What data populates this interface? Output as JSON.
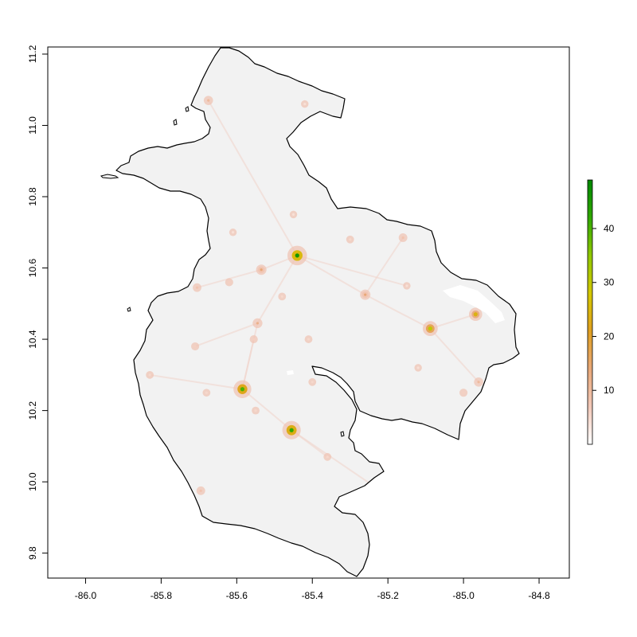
{
  "map": {
    "x_ticks": [
      {
        "value": -86.0,
        "label": "-86.0"
      },
      {
        "value": -85.8,
        "label": "-85.8"
      },
      {
        "value": -85.6,
        "label": "-85.6"
      },
      {
        "value": -85.4,
        "label": "-85.4"
      },
      {
        "value": -85.2,
        "label": "-85.2"
      },
      {
        "value": -85.0,
        "label": "-85.0"
      },
      {
        "value": -84.8,
        "label": "-84.8"
      }
    ],
    "y_ticks": [
      {
        "value": 9.8,
        "label": "9.8"
      },
      {
        "value": 10.0,
        "label": "10.0"
      },
      {
        "value": 10.2,
        "label": "10.2"
      },
      {
        "value": 10.4,
        "label": "10.4"
      },
      {
        "value": 10.6,
        "label": "10.6"
      },
      {
        "value": 10.8,
        "label": "10.8"
      },
      {
        "value": 11.0,
        "label": "11.0"
      },
      {
        "value": 11.2,
        "label": "11.2"
      }
    ],
    "xlim": [
      -86.1,
      -84.72
    ],
    "ylim": [
      9.73,
      11.22
    ],
    "background_fill": "#f2f2f2",
    "boundary_color": "#000000"
  },
  "legend": {
    "ticks": [
      {
        "value": 10,
        "label": "10"
      },
      {
        "value": 20,
        "label": "20"
      },
      {
        "value": 30,
        "label": "30"
      },
      {
        "value": 40,
        "label": "40"
      }
    ],
    "range": [
      0,
      49
    ],
    "colors": [
      "#ffffff",
      "#f2c8b8",
      "#e8a878",
      "#e0a020",
      "#d4c800",
      "#90c800",
      "#30a800",
      "#008800"
    ]
  },
  "hotspots": [
    {
      "lon": -85.44,
      "lat": 10.635,
      "value": 46
    },
    {
      "lon": -85.585,
      "lat": 10.26,
      "value": 40
    },
    {
      "lon": -85.455,
      "lat": 10.145,
      "value": 42
    },
    {
      "lon": -85.088,
      "lat": 10.43,
      "value": 30
    },
    {
      "lon": -84.968,
      "lat": 10.47,
      "value": 24
    },
    {
      "lon": -85.535,
      "lat": 10.595,
      "value": 14
    },
    {
      "lon": -85.26,
      "lat": 10.525,
      "value": 14
    },
    {
      "lon": -85.545,
      "lat": 10.445,
      "value": 12
    },
    {
      "lon": -85.675,
      "lat": 11.07,
      "value": 10
    },
    {
      "lon": -84.96,
      "lat": 10.28,
      "value": 10
    },
    {
      "lon": -85.16,
      "lat": 10.685,
      "value": 8
    },
    {
      "lon": -85.24,
      "lat": 9.99,
      "value": 10
    },
    {
      "lon": -85.695,
      "lat": 9.975,
      "value": 8
    },
    {
      "lon": -85.705,
      "lat": 10.545,
      "value": 8
    },
    {
      "lon": -85.555,
      "lat": 10.4,
      "value": 6
    },
    {
      "lon": -85.71,
      "lat": 10.38,
      "value": 6
    },
    {
      "lon": -85.62,
      "lat": 10.56,
      "value": 6
    },
    {
      "lon": -85.41,
      "lat": 10.4,
      "value": 5
    },
    {
      "lon": -85.4,
      "lat": 10.28,
      "value": 5
    },
    {
      "lon": -85.0,
      "lat": 10.25,
      "value": 6
    },
    {
      "lon": -85.3,
      "lat": 10.68,
      "value": 5
    },
    {
      "lon": -85.68,
      "lat": 10.25,
      "value": 5
    },
    {
      "lon": -85.83,
      "lat": 10.3,
      "value": 5
    },
    {
      "lon": -85.36,
      "lat": 10.07,
      "value": 5
    },
    {
      "lon": -85.55,
      "lat": 10.2,
      "value": 5
    },
    {
      "lon": -85.48,
      "lat": 10.52,
      "value": 5
    },
    {
      "lon": -85.61,
      "lat": 10.7,
      "value": 4
    },
    {
      "lon": -85.45,
      "lat": 10.75,
      "value": 4
    },
    {
      "lon": -85.12,
      "lat": 10.32,
      "value": 4
    },
    {
      "lon": -85.15,
      "lat": 10.55,
      "value": 4
    },
    {
      "lon": -85.42,
      "lat": 11.06,
      "value": 4
    }
  ]
}
